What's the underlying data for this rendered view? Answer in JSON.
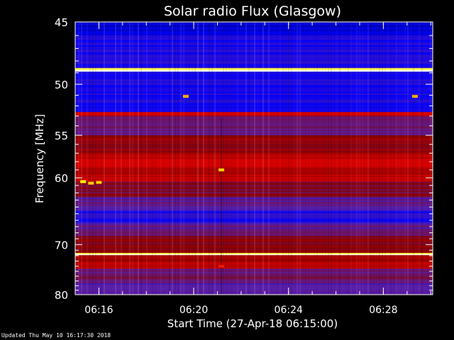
{
  "chart_data": {
    "type": "heatmap",
    "title": "Solar radio Flux (Glasgow)",
    "xlabel": "Start Time (27-Apr-18 06:15:00)",
    "ylabel": "Frequency [MHz]",
    "x_range": [
      "06:15:00",
      "06:30:05"
    ],
    "x_ticks": [
      "06:16",
      "06:20",
      "06:24",
      "06:28"
    ],
    "y_range": [
      45,
      80
    ],
    "y_ticks": [
      45,
      50,
      55,
      60,
      70,
      80
    ],
    "y_scale": "reciprocal",
    "colormap": [
      "#00007a",
      "#0000ff",
      "#5a1fa8",
      "#8b0000",
      "#e00000",
      "#ff8c00",
      "#ffff00",
      "#ffffff"
    ],
    "frequency_bands": [
      {
        "from": 45,
        "to": 46,
        "level": 0.1
      },
      {
        "from": 46,
        "to": 48.6,
        "level": 0.18
      },
      {
        "from": 48.6,
        "to": 48.9,
        "level": 0.95
      },
      {
        "from": 48.9,
        "to": 49.2,
        "level": 0.2
      },
      {
        "from": 49.2,
        "to": 52.6,
        "level": 0.18
      },
      {
        "from": 52.6,
        "to": 53.0,
        "level": 0.55
      },
      {
        "from": 53.0,
        "to": 55.0,
        "level": 0.32
      },
      {
        "from": 55.0,
        "to": 57.0,
        "level": 0.44
      },
      {
        "from": 57.0,
        "to": 60.5,
        "level": 0.52
      },
      {
        "from": 60.5,
        "to": 62.5,
        "level": 0.4
      },
      {
        "from": 62.5,
        "to": 64.5,
        "level": 0.3
      },
      {
        "from": 64.5,
        "to": 66.5,
        "level": 0.2
      },
      {
        "from": 66.5,
        "to": 68.5,
        "level": 0.3
      },
      {
        "from": 68.5,
        "to": 71.5,
        "level": 0.42
      },
      {
        "from": 71.5,
        "to": 71.9,
        "level": 0.95
      },
      {
        "from": 71.9,
        "to": 74.5,
        "level": 0.48
      },
      {
        "from": 74.5,
        "to": 77.5,
        "level": 0.34
      },
      {
        "from": 77.5,
        "to": 80,
        "level": 0.28
      }
    ],
    "bursts": [
      {
        "time": "06:15:20",
        "freq": 60.5,
        "level": 0.85
      },
      {
        "time": "06:15:40",
        "freq": 60.7,
        "level": 0.8
      },
      {
        "time": "06:16:00",
        "freq": 60.6,
        "level": 0.8
      },
      {
        "time": "06:19:40",
        "freq": 51.1,
        "level": 0.75
      },
      {
        "time": "06:21:10",
        "freq": 59.0,
        "level": 0.8
      },
      {
        "time": "06:21:10",
        "freq": 74.0,
        "level": 0.6
      },
      {
        "time": "06:29:20",
        "freq": 51.1,
        "level": 0.75
      }
    ],
    "grid": false,
    "legend": "none"
  },
  "footer": {
    "updated": "Updated Thu May 10 16:17:30 2018"
  }
}
